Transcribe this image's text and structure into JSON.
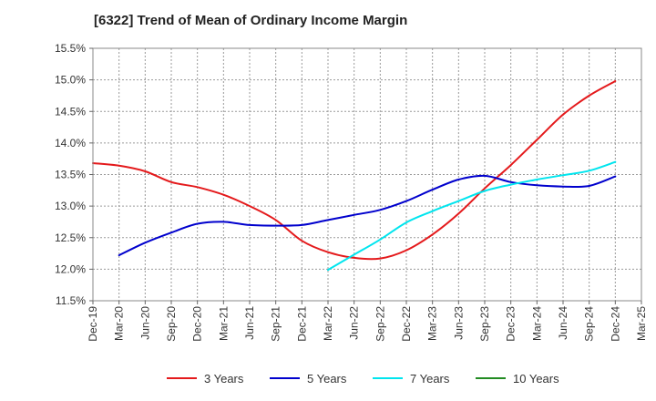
{
  "chart_data": {
    "type": "line",
    "title": "[6322]  Trend of Mean of Ordinary Income Margin",
    "xlabel": "",
    "ylabel": "",
    "ylim": [
      11.5,
      15.5
    ],
    "grid": true,
    "legend_position": "bottom",
    "y_ticks": [
      "11.5%",
      "12.0%",
      "12.5%",
      "13.0%",
      "13.5%",
      "14.0%",
      "14.5%",
      "15.0%",
      "15.5%"
    ],
    "y_tick_values": [
      11.5,
      12.0,
      12.5,
      13.0,
      13.5,
      14.0,
      14.5,
      15.0,
      15.5
    ],
    "categories": [
      "Dec-19",
      "Mar-20",
      "Jun-20",
      "Sep-20",
      "Dec-20",
      "Mar-21",
      "Jun-21",
      "Sep-21",
      "Dec-21",
      "Mar-22",
      "Jun-22",
      "Sep-22",
      "Dec-22",
      "Mar-23",
      "Jun-23",
      "Sep-23",
      "Dec-23",
      "Mar-24",
      "Jun-24",
      "Sep-24",
      "Dec-24",
      "Mar-25"
    ],
    "series": [
      {
        "name": "3 Years",
        "color": "#e41a1c",
        "values": [
          13.68,
          13.64,
          13.55,
          13.38,
          13.3,
          13.18,
          13.0,
          12.78,
          12.45,
          12.27,
          12.18,
          12.17,
          12.3,
          12.55,
          12.88,
          13.28,
          13.65,
          14.05,
          14.45,
          14.75,
          14.98,
          null
        ]
      },
      {
        "name": "5 Years",
        "color": "#0000cd",
        "values": [
          null,
          12.22,
          12.42,
          12.58,
          12.72,
          12.75,
          12.7,
          12.69,
          12.7,
          12.78,
          12.86,
          12.94,
          13.08,
          13.26,
          13.42,
          13.48,
          13.38,
          13.33,
          13.31,
          13.32,
          13.47,
          null
        ]
      },
      {
        "name": "7 Years",
        "color": "#00e5ee",
        "values": [
          null,
          null,
          null,
          null,
          null,
          null,
          null,
          null,
          null,
          11.99,
          12.23,
          12.47,
          12.74,
          12.92,
          13.08,
          13.24,
          13.34,
          13.42,
          13.49,
          13.56,
          13.7,
          null
        ]
      },
      {
        "name": "10 Years",
        "color": "#228b22",
        "values": [
          null,
          null,
          null,
          null,
          null,
          null,
          null,
          null,
          null,
          null,
          null,
          null,
          null,
          null,
          null,
          null,
          null,
          null,
          null,
          null,
          null,
          null
        ]
      }
    ]
  }
}
